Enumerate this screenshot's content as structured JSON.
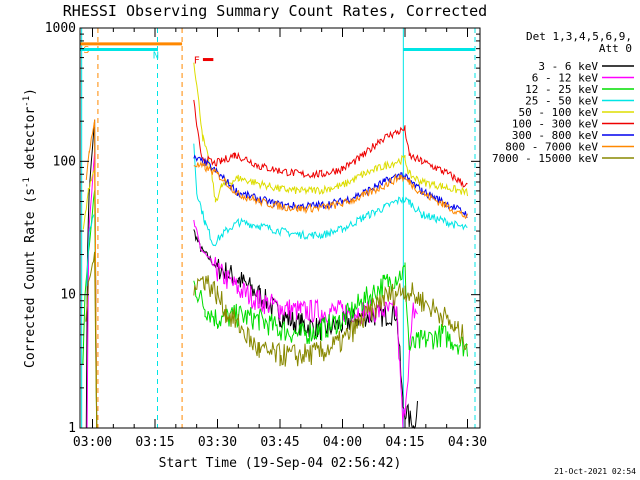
{
  "chart_data": {
    "type": "line",
    "title": "RHESSI Observing Summary Count Rates, Corrected",
    "xlabel": "Start Time (19-Sep-04 02:56:42)",
    "ylabel": "Corrected Count Rate (s",
    "ylabel_sup1": "-1",
    "ylabel_mid": " detector",
    "ylabel_sup2": "-1",
    "ylabel_end": ")",
    "y_scale": "log",
    "ylim": [
      1,
      1000
    ],
    "xlim_minutes": [
      -3,
      93
    ],
    "y_ticks": [
      "1",
      "10",
      "100",
      "1000"
    ],
    "x_ticks": [
      {
        "label": "03:00",
        "min": 0
      },
      {
        "label": "03:15",
        "min": 15
      },
      {
        "label": "03:30",
        "min": 30
      },
      {
        "label": "03:45",
        "min": 45
      },
      {
        "label": "04:00",
        "min": 60
      },
      {
        "label": "04:15",
        "min": 75
      },
      {
        "label": "04:30",
        "min": 90
      }
    ],
    "legend_header1": "Det 1,3,4,5,6,9,",
    "legend_header2": "Att 0",
    "series": [
      {
        "name": "3 - 6 keV",
        "color": "#000000",
        "points": [
          [
            -1.5,
            1
          ],
          [
            -1.2,
            20
          ],
          [
            -0.8,
            60
          ],
          [
            0.5,
            200
          ],
          [
            1,
            1
          ],
          [
            24.3,
            30
          ],
          [
            26,
            22
          ],
          [
            30,
            16
          ],
          [
            35,
            13
          ],
          [
            40,
            10
          ],
          [
            45,
            7
          ],
          [
            50,
            6
          ],
          [
            55,
            5.5
          ],
          [
            60,
            6
          ],
          [
            65,
            7
          ],
          [
            70,
            7
          ],
          [
            73,
            7.5
          ],
          [
            74.5,
            1.5
          ],
          [
            77,
            1
          ],
          [
            78,
            1.5
          ]
        ]
      },
      {
        "name": "6 - 12 keV",
        "color": "#ff00ff",
        "points": [
          [
            -1.3,
            1
          ],
          [
            -0.9,
            30
          ],
          [
            0.5,
            120
          ],
          [
            1,
            1
          ],
          [
            24.3,
            35
          ],
          [
            26,
            22
          ],
          [
            30,
            15
          ],
          [
            35,
            11
          ],
          [
            40,
            9
          ],
          [
            45,
            8
          ],
          [
            50,
            7.5
          ],
          [
            55,
            7.5
          ],
          [
            60,
            7.5
          ],
          [
            65,
            7.5
          ],
          [
            70,
            7.5
          ],
          [
            73,
            7.5
          ],
          [
            74.5,
            1
          ],
          [
            77,
            7.5
          ],
          [
            78,
            7.5
          ]
        ]
      },
      {
        "name": "12 - 25 keV",
        "color": "#00dd00",
        "points": [
          [
            -2.3,
            3
          ],
          [
            -1.8,
            10
          ],
          [
            -1,
            20
          ],
          [
            0.5,
            60
          ],
          [
            1,
            1
          ],
          [
            24.3,
            12
          ],
          [
            27,
            8
          ],
          [
            30,
            6.5
          ],
          [
            35,
            7
          ],
          [
            40,
            6.5
          ],
          [
            45,
            5.5
          ],
          [
            50,
            5
          ],
          [
            55,
            5.5
          ],
          [
            60,
            6.5
          ],
          [
            65,
            9
          ],
          [
            70,
            12
          ],
          [
            75,
            15
          ],
          [
            76,
            4
          ],
          [
            79,
            4.5
          ],
          [
            84,
            5
          ],
          [
            90,
            4
          ]
        ]
      },
      {
        "name": "25 - 50 keV",
        "color": "#00e5e5",
        "points": [
          [
            -1.4,
            12
          ],
          [
            -0.8,
            30
          ],
          [
            0.5,
            40
          ],
          [
            1,
            1
          ],
          [
            24.3,
            140
          ],
          [
            25,
            60
          ],
          [
            27,
            35
          ],
          [
            29,
            24
          ],
          [
            32,
            30
          ],
          [
            35,
            35
          ],
          [
            40,
            33
          ],
          [
            45,
            30
          ],
          [
            50,
            28
          ],
          [
            55,
            28
          ],
          [
            60,
            31
          ],
          [
            65,
            38
          ],
          [
            70,
            45
          ],
          [
            74,
            52
          ],
          [
            76,
            50
          ],
          [
            79,
            40
          ],
          [
            84,
            36
          ],
          [
            90,
            31
          ]
        ]
      },
      {
        "name": "50 - 100 keV",
        "color": "#dddd00",
        "points": [
          [
            -2.2,
            30
          ],
          [
            -1,
            60
          ],
          [
            0.5,
            90
          ],
          [
            1,
            1
          ],
          [
            24.3,
            580
          ],
          [
            26.5,
            150
          ],
          [
            28.5,
            85
          ],
          [
            29.5,
            50
          ],
          [
            31,
            65
          ],
          [
            35,
            75
          ],
          [
            40,
            68
          ],
          [
            45,
            62
          ],
          [
            50,
            60
          ],
          [
            55,
            61
          ],
          [
            60,
            66
          ],
          [
            65,
            80
          ],
          [
            70,
            92
          ],
          [
            75,
            105
          ],
          [
            76,
            80
          ],
          [
            79,
            70
          ],
          [
            84,
            65
          ],
          [
            90,
            58
          ]
        ]
      },
      {
        "name": "100 - 300 keV",
        "color": "#ee0000",
        "points": [
          [
            24.3,
            280
          ],
          [
            26,
            110
          ],
          [
            29,
            96
          ],
          [
            31,
            100
          ],
          [
            34,
            112
          ],
          [
            37,
            104
          ],
          [
            40,
            92
          ],
          [
            45,
            85
          ],
          [
            50,
            80
          ],
          [
            55,
            80
          ],
          [
            60,
            88
          ],
          [
            65,
            110
          ],
          [
            69,
            145
          ],
          [
            72,
            160
          ],
          [
            75,
            175
          ],
          [
            76,
            110
          ],
          [
            79,
            100
          ],
          [
            84,
            85
          ],
          [
            87,
            75
          ],
          [
            90,
            65
          ]
        ]
      },
      {
        "name": "300 - 800 keV",
        "color": "#0000ee",
        "points": [
          [
            24.3,
            105
          ],
          [
            27,
            98
          ],
          [
            30,
            82
          ],
          [
            35,
            58
          ],
          [
            40,
            52
          ],
          [
            45,
            47
          ],
          [
            50,
            46
          ],
          [
            55,
            47
          ],
          [
            60,
            50
          ],
          [
            65,
            58
          ],
          [
            70,
            70
          ],
          [
            74,
            80
          ],
          [
            76,
            72
          ],
          [
            79,
            60
          ],
          [
            84,
            50
          ],
          [
            90,
            40
          ]
        ]
      },
      {
        "name": "800 - 7000 keV",
        "color": "#ff8800",
        "points": [
          [
            -1.5,
            70
          ],
          [
            -0.8,
            120
          ],
          [
            0.5,
            200
          ],
          [
            1,
            1
          ],
          [
            24.3,
            95
          ],
          [
            27,
            90
          ],
          [
            30,
            80
          ],
          [
            35,
            57
          ],
          [
            40,
            50
          ],
          [
            45,
            46
          ],
          [
            50,
            44
          ],
          [
            55,
            45
          ],
          [
            60,
            48
          ],
          [
            65,
            55
          ],
          [
            70,
            66
          ],
          [
            74,
            77
          ],
          [
            76,
            70
          ],
          [
            79,
            58
          ],
          [
            84,
            48
          ],
          [
            90,
            38
          ]
        ]
      },
      {
        "name": "7000 - 15000 keV",
        "color": "#888800",
        "points": [
          [
            -1.6,
            6
          ],
          [
            -1,
            12
          ],
          [
            0.5,
            20
          ],
          [
            1,
            1
          ],
          [
            24.3,
            12
          ],
          [
            27,
            13
          ],
          [
            30,
            10
          ],
          [
            32,
            7.5
          ],
          [
            35,
            6
          ],
          [
            38,
            4.5
          ],
          [
            40,
            3.8
          ],
          [
            45,
            3.5
          ],
          [
            50,
            3.5
          ],
          [
            55,
            3.7
          ],
          [
            60,
            4.5
          ],
          [
            65,
            6.5
          ],
          [
            70,
            9.5
          ],
          [
            75,
            11
          ],
          [
            79,
            9
          ],
          [
            84,
            7
          ],
          [
            87,
            5.5
          ],
          [
            90,
            4.5
          ]
        ]
      }
    ],
    "annotations": {
      "dashed_lines": [
        {
          "min": 1.3,
          "color": "#ff8800"
        },
        {
          "min": 15.6,
          "color": "#00e5e5"
        },
        {
          "min": 21.5,
          "color": "#ff8800"
        },
        {
          "min": 91.8,
          "color": "#00e5e5"
        }
      ],
      "solid_lines": [
        {
          "min": -2.6,
          "color": "#00e5e5"
        },
        {
          "min": 74.6,
          "color": "#00e5e5"
        }
      ],
      "bars": [
        {
          "from": -3,
          "to": 21.5,
          "y": 760,
          "color": "#ff8800",
          "label": "S",
          "label_min": -2.2
        },
        {
          "from": -3,
          "to": 15.6,
          "y": 690,
          "color": "#00e5e5",
          "label": "N",
          "label_min": 14.5
        },
        {
          "from": 74.6,
          "to": 91.8,
          "y": 690,
          "color": "#00e5e5",
          "label": "",
          "label_min": 0
        }
      ],
      "flag_label": "F",
      "flag_min": 24.3,
      "flag_bar": {
        "from": 26.5,
        "to": 29,
        "y": 580,
        "color": "#ee0000"
      }
    }
  },
  "timestamp": "21-Oct-2021 02:54"
}
